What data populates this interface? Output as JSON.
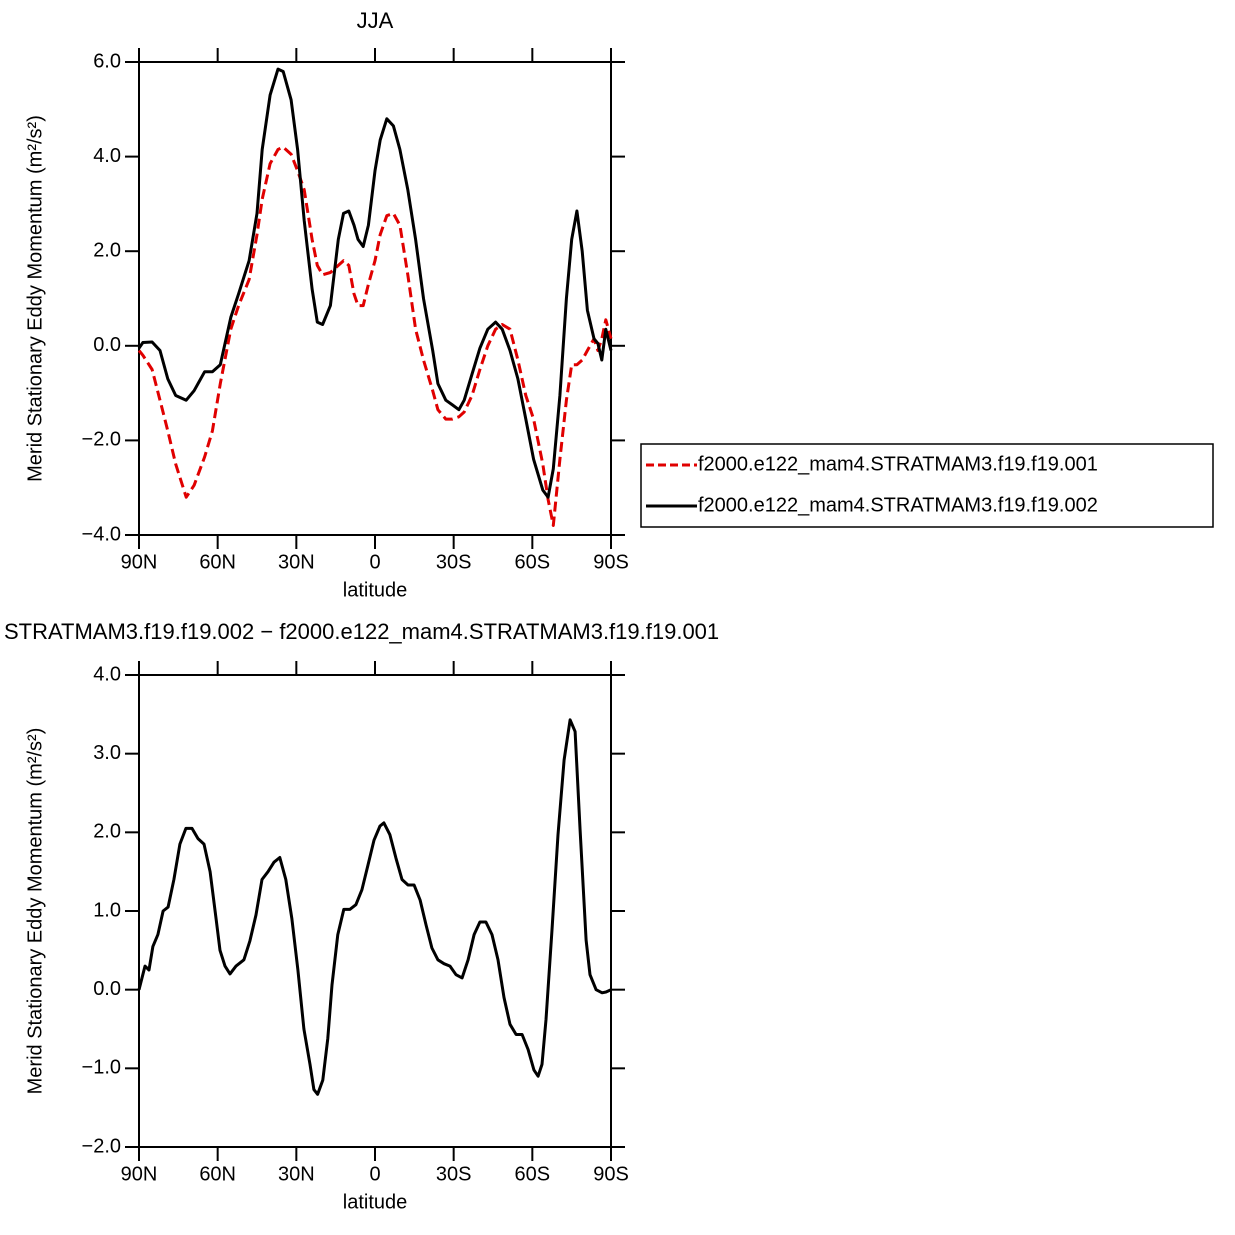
{
  "chart_data": [
    {
      "type": "line",
      "title": "JJA",
      "xlabel": "latitude",
      "ylabel": "Merid Stationary Eddy Momentum (m²/s²)",
      "x": [
        90,
        88.5,
        85,
        82,
        79,
        76,
        72,
        69,
        65,
        62,
        59,
        55,
        52,
        48,
        45,
        43,
        40,
        37,
        35,
        32,
        29.5,
        27,
        24,
        22,
        20,
        17,
        14,
        12,
        10,
        8,
        6.5,
        4.5,
        2.5,
        0,
        -2,
        -4.5,
        -7,
        -9.5,
        -12.5,
        -15.5,
        -18.5,
        -22,
        -24,
        -27,
        -29.5,
        -32,
        -34,
        -37,
        -40,
        -43,
        -46,
        -48.5,
        -51.5,
        -54.5,
        -57.5,
        -60.5,
        -64,
        -66,
        -68,
        -70.5,
        -73,
        -75,
        -77,
        -79,
        -81,
        -83.5,
        -85,
        -86.5,
        -88,
        -90
      ],
      "series": [
        {
          "name": "f2000.e122_mam4.STRATMAM3.f19.f19.001",
          "color": "#e00000",
          "dashed": true,
          "values": [
            -0.1,
            -0.2,
            -0.5,
            -1.15,
            -1.8,
            -2.5,
            -3.2,
            -2.95,
            -2.35,
            -1.8,
            -0.8,
            0.35,
            0.85,
            1.4,
            2.35,
            3.1,
            3.85,
            4.15,
            4.2,
            4.05,
            3.7,
            3.3,
            2.25,
            1.7,
            1.5,
            1.55,
            1.7,
            1.8,
            1.7,
            1.1,
            0.85,
            0.85,
            1.3,
            1.8,
            2.35,
            2.75,
            2.8,
            2.55,
            1.5,
            0.35,
            -0.3,
            -0.95,
            -1.35,
            -1.55,
            -1.55,
            -1.5,
            -1.4,
            -1.05,
            -0.5,
            0.0,
            0.35,
            0.45,
            0.35,
            -0.3,
            -1.05,
            -1.55,
            -2.5,
            -3.25,
            -3.8,
            -2.4,
            -1.15,
            -0.4,
            -0.4,
            -0.3,
            -0.1,
            0.15,
            -0.1,
            0.15,
            0.55,
            0.15
          ]
        },
        {
          "name": "f2000.e122_mam4.STRATMAM3.f19.f19.002",
          "color": "#000000",
          "dashed": false,
          "values": [
            -0.05,
            0.07,
            0.08,
            -0.1,
            -0.7,
            -1.05,
            -1.15,
            -0.95,
            -0.55,
            -0.55,
            -0.4,
            0.6,
            1.1,
            1.8,
            2.8,
            4.15,
            5.3,
            5.85,
            5.8,
            5.2,
            4.15,
            2.65,
            1.2,
            0.5,
            0.45,
            0.85,
            2.25,
            2.8,
            2.85,
            2.55,
            2.25,
            2.1,
            2.55,
            3.7,
            4.35,
            4.8,
            4.65,
            4.15,
            3.3,
            2.25,
            1.0,
            -0.1,
            -0.8,
            -1.15,
            -1.25,
            -1.35,
            -1.15,
            -0.6,
            -0.05,
            0.35,
            0.5,
            0.35,
            -0.1,
            -0.7,
            -1.55,
            -2.4,
            -3.05,
            -3.2,
            -2.6,
            -1.05,
            1.0,
            2.25,
            2.85,
            2.0,
            0.75,
            0.15,
            0.05,
            -0.3,
            0.35,
            -0.1
          ]
        }
      ],
      "xlim": [
        90,
        -90
      ],
      "xticks": [
        {
          "value": 90,
          "label": "90N"
        },
        {
          "value": 60,
          "label": "60N"
        },
        {
          "value": 30,
          "label": "30N"
        },
        0,
        {
          "value": -30,
          "label": "30S"
        },
        {
          "value": -60,
          "label": "60S"
        },
        {
          "value": -90,
          "label": "90S"
        }
      ],
      "ylim": [
        -4,
        6
      ],
      "yticks": [
        {
          "value": -4,
          "label": "−4.0"
        },
        {
          "value": -2,
          "label": "−2.0"
        },
        {
          "value": 0,
          "label": "0.0"
        },
        {
          "value": 2,
          "label": "2.0"
        },
        {
          "value": 4,
          "label": "4.0"
        },
        {
          "value": 6,
          "label": "6.0"
        }
      ],
      "legend": "right"
    },
    {
      "type": "line",
      "title": "STRATMAM3.f19.f19.002 − f2000.e122_mam4.STRATMAM3.f19.f19.001",
      "xlabel": "latitude",
      "ylabel": "Merid Stationary Eddy Momentum (m²/s²)",
      "x": [
        90,
        87.7,
        86.2,
        84.7,
        82.8,
        80.8,
        78.9,
        76.7,
        74.4,
        72.1,
        69.8,
        67.5,
        65.2,
        62.9,
        60.6,
        59.1,
        57.2,
        55.3,
        53.0,
        50.0,
        47.7,
        45.4,
        43.1,
        40.8,
        38.5,
        36.3,
        34.0,
        31.7,
        29.4,
        27.1,
        24.8,
        23.3,
        21.9,
        19.9,
        18.0,
        16.4,
        14.2,
        11.9,
        9.6,
        7.3,
        5.0,
        2.7,
        0.4,
        -1.9,
        -3.4,
        -5.7,
        -8.0,
        -10.3,
        -12.6,
        -14.9,
        -17.2,
        -19.5,
        -21.7,
        -24.0,
        -26.3,
        -28.6,
        -30.9,
        -33.2,
        -35.5,
        -37.8,
        -40.0,
        -42.3,
        -44.6,
        -46.9,
        -49.2,
        -51.5,
        -53.8,
        -56.1,
        -58.4,
        -60.6,
        -62.2,
        -63.7,
        -65.2,
        -67.5,
        -69.8,
        -72.1,
        -74.4,
        -76.3,
        -78.2,
        -80.5,
        -82.0,
        -84.3,
        -86.6,
        -88.1,
        -90
      ],
      "values": [
        0.0,
        0.3,
        0.25,
        0.55,
        0.7,
        1.0,
        1.05,
        1.4,
        1.85,
        2.05,
        2.05,
        1.92,
        1.85,
        1.5,
        0.9,
        0.5,
        0.3,
        0.2,
        0.3,
        0.38,
        0.62,
        0.95,
        1.4,
        1.5,
        1.62,
        1.68,
        1.4,
        0.9,
        0.25,
        -0.5,
        -0.95,
        -1.27,
        -1.33,
        -1.15,
        -0.62,
        0.06,
        0.7,
        1.02,
        1.02,
        1.08,
        1.27,
        1.58,
        1.9,
        2.08,
        2.12,
        1.97,
        1.67,
        1.4,
        1.33,
        1.33,
        1.14,
        0.82,
        0.53,
        0.38,
        0.33,
        0.3,
        0.19,
        0.15,
        0.38,
        0.7,
        0.86,
        0.86,
        0.7,
        0.38,
        -0.1,
        -0.44,
        -0.57,
        -0.57,
        -0.76,
        -1.02,
        -1.1,
        -0.95,
        -0.38,
        0.76,
        1.97,
        2.92,
        3.43,
        3.28,
        2.03,
        0.63,
        0.19,
        0.0,
        -0.04,
        -0.03,
        0.0
      ],
      "color": "#000000",
      "xlim": [
        90,
        -90
      ],
      "xticks": [
        {
          "value": 90,
          "label": "90N"
        },
        {
          "value": 60,
          "label": "60N"
        },
        {
          "value": 30,
          "label": "30N"
        },
        0,
        {
          "value": -30,
          "label": "30S"
        },
        {
          "value": -60,
          "label": "60S"
        },
        {
          "value": -90,
          "label": "90S"
        }
      ],
      "ylim": [
        -2,
        4
      ],
      "yticks": [
        {
          "value": -2,
          "label": "−2.0"
        },
        {
          "value": -1,
          "label": "−1.0"
        },
        {
          "value": 0,
          "label": "0.0"
        },
        {
          "value": 1,
          "label": "1.0"
        },
        {
          "value": 2,
          "label": "2.0"
        },
        {
          "value": 3,
          "label": "3.0"
        },
        {
          "value": 4,
          "label": "4.0"
        }
      ]
    }
  ]
}
